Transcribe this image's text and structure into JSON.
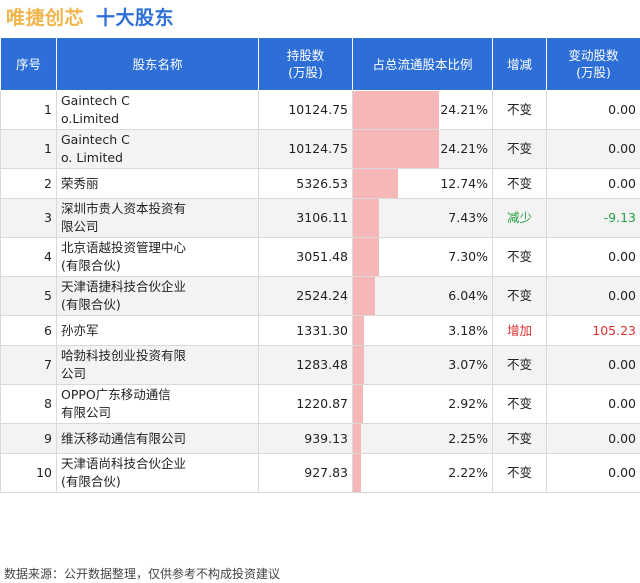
{
  "title": {
    "company": "唯捷创芯",
    "main": "十大股东"
  },
  "table": {
    "headers": {
      "rank": "序号",
      "name": "股东名称",
      "shares_line1": "持股数",
      "shares_line2": "(万股)",
      "pct": "占总流通股本比例",
      "change": "增减",
      "delta_line1": "变动股数",
      "delta_line2": "(万股)"
    },
    "rows": [
      {
        "rank": "1",
        "name_line1": "Gaintech C",
        "name_line2": "o.Limited",
        "shares": "10124.75",
        "pct": "24.21%",
        "pct_value": 24.21,
        "change": "不变",
        "delta": "0.00",
        "trend": "none"
      },
      {
        "rank": "1",
        "name_line1": "Gaintech C",
        "name_line2": "o. Limited",
        "shares": "10124.75",
        "pct": "24.21%",
        "pct_value": 24.21,
        "change": "不变",
        "delta": "0.00",
        "trend": "none"
      },
      {
        "rank": "2",
        "name_line1": "荣秀丽",
        "name_line2": "",
        "shares": "5326.53",
        "pct": "12.74%",
        "pct_value": 12.74,
        "change": "不变",
        "delta": "0.00",
        "trend": "none"
      },
      {
        "rank": "3",
        "name_line1": "深圳市贵人资本投资有",
        "name_line2": "限公司",
        "shares": "3106.11",
        "pct": "7.43%",
        "pct_value": 7.43,
        "change": "减少",
        "delta": "-9.13",
        "trend": "down"
      },
      {
        "rank": "4",
        "name_line1": "北京语越投资管理中心",
        "name_line2": "(有限合伙)",
        "shares": "3051.48",
        "pct": "7.30%",
        "pct_value": 7.3,
        "change": "不变",
        "delta": "0.00",
        "trend": "none"
      },
      {
        "rank": "5",
        "name_line1": "天津语捷科技合伙企业",
        "name_line2": "(有限合伙)",
        "shares": "2524.24",
        "pct": "6.04%",
        "pct_value": 6.04,
        "change": "不变",
        "delta": "0.00",
        "trend": "none"
      },
      {
        "rank": "6",
        "name_line1": "孙亦军",
        "name_line2": "",
        "shares": "1331.30",
        "pct": "3.18%",
        "pct_value": 3.18,
        "change": "增加",
        "delta": "105.23",
        "trend": "up"
      },
      {
        "rank": "7",
        "name_line1": "哈勃科技创业投资有限",
        "name_line2": "公司",
        "shares": "1283.48",
        "pct": "3.07%",
        "pct_value": 3.07,
        "change": "不变",
        "delta": "0.00",
        "trend": "none"
      },
      {
        "rank": "8",
        "name_line1": "OPPO广东移动通信",
        "name_line2": "有限公司",
        "shares": "1220.87",
        "pct": "2.92%",
        "pct_value": 2.92,
        "change": "不变",
        "delta": "0.00",
        "trend": "none"
      },
      {
        "rank": "9",
        "name_line1": "维沃移动通信有限公司",
        "name_line2": "",
        "shares": "939.13",
        "pct": "2.25%",
        "pct_value": 2.25,
        "change": "不变",
        "delta": "0.00",
        "trend": "none"
      },
      {
        "rank": "10",
        "name_line1": "天津语尚科技合伙企业",
        "name_line2": "(有限合伙)",
        "shares": "927.83",
        "pct": "2.22%",
        "pct_value": 2.22,
        "change": "不变",
        "delta": "0.00",
        "trend": "none"
      }
    ]
  },
  "footer": "数据来源：公开数据整理，仅供参考不构成投资建议",
  "colors": {
    "header_bg": "#2d6fd6",
    "bar": "#f5b7b7",
    "up": "#e03030",
    "down": "#27a046",
    "company_title": "#f0b54a"
  }
}
